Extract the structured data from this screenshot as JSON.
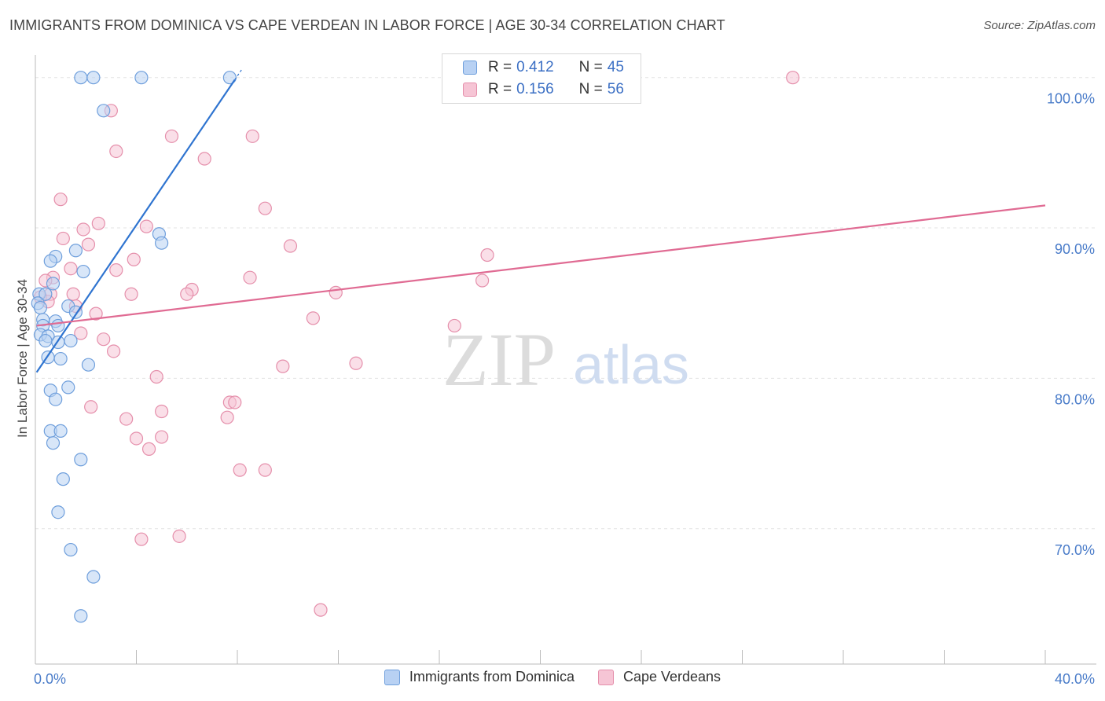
{
  "header": {
    "title": "IMMIGRANTS FROM DOMINICA VS CAPE VERDEAN IN LABOR FORCE | AGE 30-34 CORRELATION CHART",
    "source": "Source: ZipAtlas.com"
  },
  "watermark": {
    "zip": "ZIP",
    "atlas": "atlas"
  },
  "legend": {
    "series1": {
      "r_label": "R =",
      "r_value": "0.412",
      "n_label": "N =",
      "n_value": "45"
    },
    "series2": {
      "r_label": "R =",
      "r_value": "0.156",
      "n_label": "N =",
      "n_value": "56"
    }
  },
  "colors": {
    "blue_fill": "#b8d1f3",
    "blue_stroke": "#6f9fdc",
    "blue_line": "#2f74d0",
    "pink_fill": "#f6c5d5",
    "pink_stroke": "#e58fab",
    "pink_line": "#e06b93"
  },
  "chart_data": {
    "type": "scatter",
    "title": "IMMIGRANTS FROM DOMINICA VS CAPE VERDEAN IN LABOR FORCE | AGE 30-34 CORRELATION CHART",
    "xlabel": "",
    "ylabel": "In Labor Force | Age 30-34",
    "xlim": [
      0,
      40
    ],
    "ylim": [
      61,
      101.5
    ],
    "x_tick_labels": [
      {
        "value": 0,
        "label": "0.0%"
      },
      {
        "value": 40,
        "label": "40.0%"
      }
    ],
    "y_tick_labels": [
      {
        "value": 70,
        "label": "70.0%"
      },
      {
        "value": 80,
        "label": "80.0%"
      },
      {
        "value": 90,
        "label": "90.0%"
      },
      {
        "value": 100,
        "label": "100.0%"
      }
    ],
    "series": [
      {
        "name": "Immigrants from Dominica",
        "color": "blue",
        "trend": {
          "x": [
            0.05,
            8.2
          ],
          "y": [
            80.4,
            100.6
          ]
        },
        "points": [
          [
            1.8,
            100
          ],
          [
            2.3,
            100
          ],
          [
            4.2,
            100
          ],
          [
            7.7,
            100
          ],
          [
            2.7,
            97.8
          ],
          [
            4.9,
            89.6
          ],
          [
            5.0,
            89.0
          ],
          [
            1.6,
            88.5
          ],
          [
            0.8,
            88.1
          ],
          [
            0.6,
            87.8
          ],
          [
            1.9,
            87.1
          ],
          [
            0.7,
            86.3
          ],
          [
            0.15,
            85.6
          ],
          [
            0.4,
            85.6
          ],
          [
            0.1,
            85.0
          ],
          [
            0.2,
            84.7
          ],
          [
            1.3,
            84.8
          ],
          [
            1.6,
            84.4
          ],
          [
            0.3,
            83.9
          ],
          [
            0.8,
            83.8
          ],
          [
            0.3,
            83.5
          ],
          [
            0.9,
            83.5
          ],
          [
            0.2,
            82.9
          ],
          [
            0.5,
            82.8
          ],
          [
            0.4,
            82.5
          ],
          [
            0.9,
            82.4
          ],
          [
            1.4,
            82.5
          ],
          [
            0.5,
            81.4
          ],
          [
            1.0,
            81.3
          ],
          [
            2.1,
            80.9
          ],
          [
            0.6,
            79.2
          ],
          [
            1.3,
            79.4
          ],
          [
            0.8,
            78.6
          ],
          [
            0.6,
            76.5
          ],
          [
            1.0,
            76.5
          ],
          [
            0.7,
            75.7
          ],
          [
            1.8,
            74.6
          ],
          [
            1.1,
            73.3
          ],
          [
            0.9,
            71.1
          ],
          [
            1.4,
            68.6
          ],
          [
            2.3,
            66.8
          ],
          [
            1.8,
            64.2
          ]
        ]
      },
      {
        "name": "Cape Verdeans",
        "color": "pink",
        "trend": {
          "x": [
            0.05,
            40
          ],
          "y": [
            83.5,
            91.5
          ]
        },
        "points": [
          [
            30.0,
            100
          ],
          [
            3.0,
            97.8
          ],
          [
            5.4,
            96.1
          ],
          [
            8.6,
            96.1
          ],
          [
            3.2,
            95.1
          ],
          [
            6.7,
            94.6
          ],
          [
            1.0,
            91.9
          ],
          [
            9.1,
            91.3
          ],
          [
            2.5,
            90.3
          ],
          [
            4.4,
            90.1
          ],
          [
            1.9,
            89.9
          ],
          [
            1.1,
            89.3
          ],
          [
            2.1,
            88.9
          ],
          [
            10.1,
            88.8
          ],
          [
            17.9,
            88.2
          ],
          [
            3.9,
            87.9
          ],
          [
            1.4,
            87.3
          ],
          [
            3.2,
            87.2
          ],
          [
            0.7,
            86.7
          ],
          [
            8.5,
            86.7
          ],
          [
            17.7,
            86.5
          ],
          [
            0.4,
            86.5
          ],
          [
            6.2,
            85.9
          ],
          [
            1.5,
            85.6
          ],
          [
            0.6,
            85.6
          ],
          [
            3.8,
            85.6
          ],
          [
            6.0,
            85.6
          ],
          [
            11.9,
            85.7
          ],
          [
            0.2,
            85.4
          ],
          [
            0.5,
            85.1
          ],
          [
            1.6,
            84.8
          ],
          [
            2.4,
            84.3
          ],
          [
            11.0,
            84.0
          ],
          [
            16.6,
            83.5
          ],
          [
            1.8,
            83.0
          ],
          [
            2.7,
            82.6
          ],
          [
            3.1,
            81.8
          ],
          [
            9.8,
            80.8
          ],
          [
            12.7,
            81.0
          ],
          [
            4.8,
            80.1
          ],
          [
            2.2,
            78.1
          ],
          [
            5.0,
            77.8
          ],
          [
            7.7,
            78.4
          ],
          [
            7.9,
            78.4
          ],
          [
            3.6,
            77.3
          ],
          [
            7.6,
            77.4
          ],
          [
            4.0,
            76.0
          ],
          [
            5.0,
            76.1
          ],
          [
            4.5,
            75.3
          ],
          [
            8.1,
            73.9
          ],
          [
            9.1,
            73.9
          ],
          [
            5.7,
            69.5
          ],
          [
            4.2,
            69.3
          ],
          [
            11.3,
            64.6
          ]
        ]
      }
    ],
    "legend": [
      "Immigrants from Dominica",
      "Cape Verdeans"
    ]
  }
}
